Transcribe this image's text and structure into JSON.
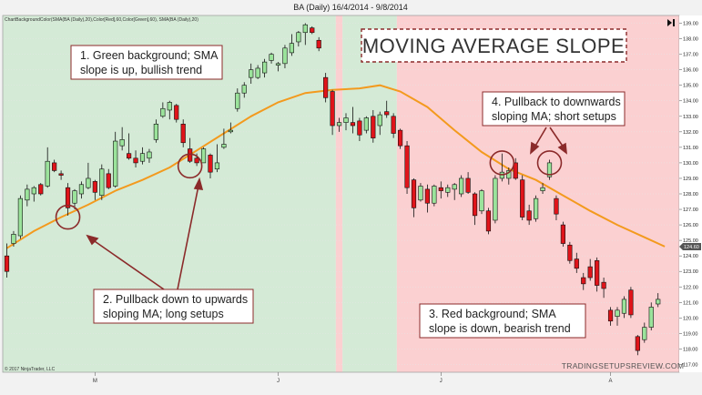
{
  "chart_data": {
    "type": "candlestick",
    "title": "BA (Daily) 16/4/2014 - 9/8/2014",
    "indicator_label": "ChartBackgroundColor(SMA(BA (Daily),20),Color[Red],60,Color[Green],60), SMA(BA (Daily),20)",
    "copyright": "© 2017 NinjaTrader, LLC",
    "watermark": "TRADINGSETUPSREVIEW.COM",
    "headline": "MOVING AVERAGE SLOPE",
    "y_axis": {
      "range": [
        116.5,
        139.5
      ],
      "ticks": [
        "117.00",
        "118.00",
        "119.00",
        "120.00",
        "121.00",
        "122.00",
        "123.00",
        "124.00",
        "125.00",
        "126.00",
        "127.00",
        "128.00",
        "129.00",
        "130.00",
        "131.00",
        "132.00",
        "133.00",
        "134.00",
        "135.00",
        "136.00",
        "137.00",
        "138.00",
        "139.00"
      ],
      "price_marker": "124.60"
    },
    "x_axis": {
      "ticks": [
        {
          "label": "M",
          "index": 13
        },
        {
          "label": "J",
          "index": 40
        },
        {
          "label": "J",
          "index": 64
        },
        {
          "label": "A",
          "index": 89
        }
      ]
    },
    "background_regions": [
      {
        "from": 0,
        "to": 48.5,
        "color": "green"
      },
      {
        "from": 48.5,
        "to": 49.5,
        "color": "red"
      },
      {
        "from": 49.5,
        "to": 57.5,
        "color": "green"
      },
      {
        "from": 57.5,
        "to": 98,
        "color": "red"
      }
    ],
    "candles": [
      [
        124.0,
        124.8,
        122.6,
        123.0
      ],
      [
        124.8,
        125.6,
        124.6,
        125.4
      ],
      [
        125.3,
        127.9,
        125.1,
        127.7
      ],
      [
        127.6,
        128.6,
        127.2,
        128.3
      ],
      [
        128.0,
        128.5,
        127.5,
        128.4
      ],
      [
        128.6,
        128.7,
        127.9,
        128.0
      ],
      [
        128.5,
        131.0,
        128.4,
        130.1
      ],
      [
        130.0,
        130.2,
        129.4,
        129.5
      ],
      [
        129.3,
        129.5,
        128.9,
        129.2
      ],
      [
        128.4,
        128.7,
        126.6,
        127.1
      ],
      [
        127.4,
        128.3,
        127.0,
        128.2
      ],
      [
        128.0,
        128.8,
        127.7,
        128.6
      ],
      [
        128.4,
        130.0,
        128.3,
        129.0
      ],
      [
        128.8,
        128.9,
        127.6,
        128.1
      ],
      [
        127.9,
        129.9,
        127.6,
        129.6
      ],
      [
        129.3,
        129.6,
        128.3,
        128.4
      ],
      [
        128.5,
        132.0,
        128.4,
        131.4
      ],
      [
        131.1,
        132.3,
        130.8,
        131.5
      ],
      [
        130.6,
        131.9,
        130.2,
        130.3
      ],
      [
        130.3,
        130.8,
        129.7,
        130.0
      ],
      [
        130.1,
        131.0,
        129.9,
        130.6
      ],
      [
        130.3,
        130.9,
        130.0,
        130.7
      ],
      [
        131.5,
        132.8,
        131.3,
        132.5
      ],
      [
        133.0,
        133.9,
        132.9,
        133.5
      ],
      [
        133.4,
        134.0,
        132.8,
        133.9
      ],
      [
        133.7,
        133.8,
        132.6,
        132.8
      ],
      [
        132.5,
        132.8,
        131.0,
        131.3
      ],
      [
        130.9,
        131.6,
        130.0,
        130.1
      ],
      [
        130.3,
        130.6,
        129.8,
        130.0
      ],
      [
        130.0,
        131.0,
        130.0,
        130.9
      ],
      [
        130.5,
        130.6,
        129.0,
        129.4
      ],
      [
        129.6,
        131.2,
        129.4,
        130.0
      ],
      [
        131.0,
        132.2,
        130.9,
        131.2
      ],
      [
        132.0,
        132.6,
        131.9,
        132.1
      ],
      [
        133.5,
        134.8,
        133.3,
        134.5
      ],
      [
        134.5,
        135.2,
        134.2,
        135.0
      ],
      [
        135.5,
        136.4,
        135.1,
        136.0
      ],
      [
        135.5,
        136.3,
        135.4,
        136.1
      ],
      [
        135.8,
        136.7,
        135.5,
        136.5
      ],
      [
        136.6,
        137.1,
        136.4,
        137.0
      ],
      [
        136.3,
        136.5,
        135.9,
        136.4
      ],
      [
        136.4,
        137.6,
        136.1,
        137.4
      ],
      [
        137.1,
        138.3,
        136.9,
        137.7
      ],
      [
        137.8,
        138.5,
        137.5,
        138.4
      ],
      [
        138.4,
        139.0,
        137.6,
        138.9
      ],
      [
        138.7,
        138.8,
        138.3,
        138.4
      ],
      [
        137.9,
        138.1,
        137.2,
        137.4
      ],
      [
        135.5,
        135.8,
        133.9,
        134.2
      ],
      [
        134.6,
        134.7,
        131.8,
        132.4
      ],
      [
        132.4,
        132.9,
        132.0,
        132.6
      ],
      [
        132.6,
        133.2,
        132.1,
        132.9
      ],
      [
        132.6,
        133.6,
        131.9,
        132.4
      ],
      [
        132.7,
        132.9,
        131.4,
        131.8
      ],
      [
        132.1,
        133.0,
        131.9,
        132.9
      ],
      [
        133.0,
        133.4,
        131.3,
        131.6
      ],
      [
        132.4,
        133.3,
        131.8,
        133.1
      ],
      [
        133.3,
        134.0,
        132.9,
        133.1
      ],
      [
        133.0,
        133.2,
        131.6,
        131.9
      ],
      [
        132.1,
        132.2,
        130.9,
        131.1
      ],
      [
        131.1,
        131.4,
        128.0,
        128.4
      ],
      [
        128.9,
        129.0,
        126.5,
        127.1
      ],
      [
        127.6,
        128.7,
        127.5,
        128.5
      ],
      [
        128.3,
        128.6,
        126.8,
        127.4
      ],
      [
        127.4,
        128.6,
        127.2,
        128.5
      ],
      [
        128.4,
        128.8,
        127.7,
        128.2
      ],
      [
        128.1,
        128.6,
        127.8,
        128.4
      ],
      [
        128.3,
        128.7,
        127.6,
        128.6
      ],
      [
        128.0,
        129.2,
        127.8,
        129.0
      ],
      [
        129.0,
        129.4,
        128.0,
        128.1
      ],
      [
        128.0,
        128.1,
        126.0,
        126.6
      ],
      [
        126.9,
        128.3,
        126.7,
        128.2
      ],
      [
        126.9,
        127.1,
        125.4,
        125.6
      ],
      [
        126.3,
        129.2,
        126.1,
        129.0
      ],
      [
        129.0,
        130.6,
        128.8,
        129.4
      ],
      [
        129.0,
        129.7,
        128.6,
        129.5
      ],
      [
        130.0,
        130.3,
        128.9,
        129.0
      ],
      [
        128.9,
        129.2,
        126.3,
        126.5
      ],
      [
        126.9,
        127.3,
        126.0,
        126.3
      ],
      [
        126.4,
        127.9,
        126.2,
        127.7
      ],
      [
        128.2,
        128.7,
        128.0,
        128.4
      ],
      [
        129.1,
        130.2,
        128.9,
        130.0
      ],
      [
        127.7,
        127.9,
        126.3,
        126.7
      ],
      [
        126.0,
        126.2,
        124.6,
        124.8
      ],
      [
        124.7,
        124.9,
        123.5,
        123.7
      ],
      [
        123.8,
        124.2,
        122.9,
        123.2
      ],
      [
        122.6,
        122.9,
        121.8,
        122.2
      ],
      [
        123.3,
        123.8,
        122.4,
        122.6
      ],
      [
        123.7,
        123.9,
        121.7,
        122.1
      ],
      [
        122.3,
        122.6,
        121.3,
        121.9
      ],
      [
        120.5,
        120.7,
        119.5,
        119.8
      ],
      [
        120.1,
        120.7,
        119.5,
        120.5
      ],
      [
        120.3,
        121.4,
        120.0,
        121.2
      ],
      [
        121.8,
        122.0,
        120.0,
        120.2
      ],
      [
        118.8,
        118.9,
        117.6,
        117.9
      ],
      [
        118.6,
        119.7,
        118.4,
        119.4
      ],
      [
        119.4,
        121.0,
        119.2,
        120.7
      ],
      [
        120.9,
        121.6,
        120.7,
        121.2
      ]
    ],
    "sma": [
      [
        0,
        124.5
      ],
      [
        4,
        125.6
      ],
      [
        8,
        126.5
      ],
      [
        12,
        127.3
      ],
      [
        16,
        128.2
      ],
      [
        20,
        128.9
      ],
      [
        24,
        129.7
      ],
      [
        28,
        130.8
      ],
      [
        32,
        131.9
      ],
      [
        36,
        133.0
      ],
      [
        40,
        133.9
      ],
      [
        44,
        134.5
      ],
      [
        48,
        134.7
      ],
      [
        52,
        134.8
      ],
      [
        55,
        135.0
      ],
      [
        58,
        134.6
      ],
      [
        62,
        133.6
      ],
      [
        66,
        132.1
      ],
      [
        70,
        130.7
      ],
      [
        74,
        129.6
      ],
      [
        78,
        128.9
      ],
      [
        82,
        127.9
      ],
      [
        86,
        126.9
      ],
      [
        90,
        126.0
      ],
      [
        94,
        125.2
      ],
      [
        97,
        124.6
      ]
    ],
    "annotations": [
      {
        "id": "note1",
        "lines": [
          "1. Green background; SMA",
          "slope is up, bullish trend"
        ]
      },
      {
        "id": "note2",
        "lines": [
          "2. Pullback down to upwards",
          "sloping MA; long setups"
        ]
      },
      {
        "id": "note3",
        "lines": [
          "3. Red background; SMA",
          "slope is down, bearish trend"
        ]
      },
      {
        "id": "note4",
        "lines": [
          "4. Pullback to downwards",
          "sloping MA; short setups"
        ]
      }
    ],
    "highlight_circles": [
      {
        "index": 9,
        "price": 126.5
      },
      {
        "index": 27,
        "price": 129.8
      },
      {
        "index": 73,
        "price": 130.0
      },
      {
        "index": 80,
        "price": 130.0
      }
    ]
  }
}
